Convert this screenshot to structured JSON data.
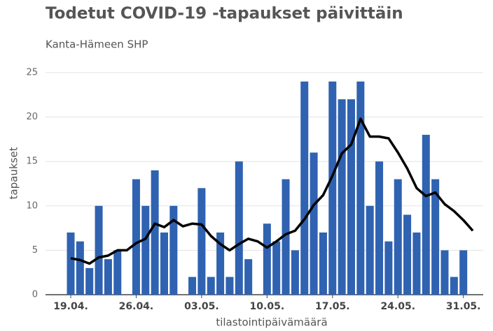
{
  "chart_data": {
    "type": "bar",
    "title": "Todetut COVID-19 -tapaukset päivittäin",
    "subtitle": "Kanta-Hämeen SHP",
    "x_label": "tilastointipäivämäärä",
    "y_label": "tapaukset",
    "categories": [
      "19.04.",
      null,
      null,
      null,
      null,
      null,
      null,
      "26.04.",
      null,
      null,
      null,
      null,
      null,
      null,
      "03.05.",
      null,
      null,
      null,
      null,
      null,
      null,
      "10.05.",
      null,
      null,
      null,
      null,
      null,
      null,
      "17.05.",
      null,
      null,
      null,
      null,
      null,
      null,
      "24.05.",
      null,
      null,
      null,
      null,
      null,
      null,
      "31.05.",
      null
    ],
    "series": [
      {
        "type": "bar",
        "color": "#2f62b1",
        "values": [
          7,
          6,
          3,
          10,
          4,
          5,
          0,
          13,
          10,
          14,
          7,
          10,
          0,
          2,
          12,
          2,
          7,
          2,
          15,
          4,
          0,
          8,
          6,
          13,
          5,
          24,
          16,
          7,
          24,
          22,
          22,
          24,
          10,
          15,
          6,
          13,
          9,
          7,
          18,
          13,
          5,
          2,
          5,
          0
        ]
      },
      {
        "type": "line",
        "color": "#000000",
        "values": [
          4.1,
          3.9,
          3.5,
          4.2,
          4.4,
          5.0,
          5.0,
          5.8,
          6.3,
          8.0,
          7.6,
          8.4,
          7.7,
          8.0,
          7.9,
          6.6,
          5.7,
          5.0,
          5.7,
          6.3,
          6.0,
          5.3,
          6.0,
          6.8,
          7.2,
          8.5,
          10.1,
          11.2,
          13.4,
          15.9,
          16.9,
          19.8,
          17.8,
          17.8,
          17.6,
          16.0,
          14.2,
          12.0,
          11.1,
          11.5,
          10.2,
          9.4,
          8.4,
          7.2
        ]
      }
    ],
    "ylim": [
      0,
      25
    ],
    "yticks": [
      0,
      5,
      10,
      15,
      20,
      25
    ],
    "grid": true
  }
}
